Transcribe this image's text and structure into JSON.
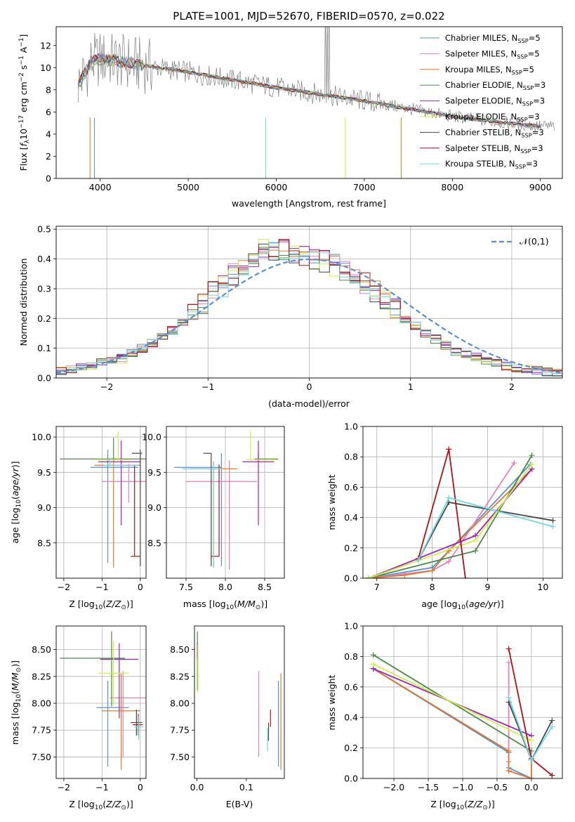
{
  "figure": {
    "title": "PLATE=1001, MJD=52670, FIBERID=0570, z=0.022"
  },
  "colors": {
    "Chabrier MILES": "#5b8ed6",
    "Salpeter MILES": "#e87fbf",
    "Kroupa MILES": "#e07a2a",
    "Chabrier ELODIE": "#4a8a4a",
    "Salpeter ELODIE": "#a020c0",
    "Kroupa ELODIE": "#ccf040",
    "Chabrier STELIB": "#444444",
    "Salpeter STELIB": "#b01010",
    "Kroupa STELIB": "#70d8e0"
  },
  "chart_data": [
    {
      "id": "spectrum",
      "type": "line",
      "title": "PLATE=1001, MJD=52670, FIBERID=0570, z=0.022",
      "xlabel": "wavelength [Angstrom, rest frame]",
      "ylabel": "Flux [f_λ 10^-17 erg cm^-2 s^-1 A^-1]",
      "xlim": [
        3500,
        9250
      ],
      "ylim": [
        0,
        13.7
      ],
      "xticks": [
        4000,
        5000,
        6000,
        7000,
        8000,
        9000
      ],
      "yticks": [
        0,
        2,
        4,
        6,
        8,
        10,
        12
      ],
      "grid": false,
      "legend_position": "top-right",
      "legend": [
        "Chabrier MILES, N_SSP=5",
        "Salpeter MILES, N_SSP=5",
        "Kroupa MILES, N_SSP=5",
        "Chabrier ELODIE, N_SSP=3",
        "Salpeter ELODIE, N_SSP=3",
        "Kroupa ELODIE, N_SSP=3",
        "Chabrier STELIB, N_SSP=3",
        "Salpeter STELIB, N_SSP=3",
        "Kroupa STELIB, N_SSP=3"
      ],
      "observed_continuum": {
        "x": [
          3750,
          3900,
          4000,
          4200,
          4500,
          5000,
          5500,
          6000,
          6500,
          7000,
          7500,
          8000,
          8500,
          9000
        ],
        "y": [
          8.5,
          10.5,
          10.8,
          10.6,
          10.2,
          9.6,
          8.9,
          8.2,
          7.6,
          7.0,
          6.3,
          5.6,
          5.1,
          4.7
        ]
      }
    },
    {
      "id": "residuals",
      "type": "line",
      "xlabel": "(data-model)/error",
      "ylabel": "Normed distribution",
      "xlim": [
        -2.5,
        2.5
      ],
      "ylim": [
        0,
        0.51
      ],
      "xticks": [
        -2,
        -1,
        0,
        1,
        2
      ],
      "yticks": [
        0.0,
        0.1,
        0.2,
        0.3,
        0.4,
        0.5
      ],
      "grid": true,
      "legend_position": "top-right",
      "legend": [
        "𝒩(0,1)"
      ],
      "bin_width": 0.1,
      "mean_histogram": [
        0.025,
        0.03,
        0.035,
        0.04,
        0.05,
        0.055,
        0.065,
        0.085,
        0.1,
        0.115,
        0.135,
        0.16,
        0.19,
        0.215,
        0.25,
        0.285,
        0.31,
        0.35,
        0.38,
        0.41,
        0.43,
        0.42,
        0.43,
        0.425,
        0.41,
        0.4,
        0.39,
        0.38,
        0.365,
        0.35,
        0.32,
        0.29,
        0.26,
        0.23,
        0.2,
        0.175,
        0.15,
        0.13,
        0.11,
        0.09,
        0.08,
        0.07,
        0.06,
        0.05,
        0.04,
        0.035,
        0.03,
        0.025,
        0.02,
        0.015
      ]
    },
    {
      "id": "age_vs_Z",
      "type": "scatter",
      "xlabel": "Z [log10(Z/Z☉)]",
      "ylabel": "age [log10(age/yr)]",
      "xlim": [
        -2.2,
        0.15
      ],
      "ylim": [
        8.0,
        10.15
      ],
      "xticks": [
        -2,
        -1,
        0
      ],
      "yticks": [
        8.5,
        9.0,
        9.5,
        10.0
      ],
      "grid": true,
      "points": [
        {
          "series": "Chabrier MILES",
          "x": -0.85,
          "xerr": [
            0.45,
            0.8
          ],
          "y": 9.57,
          "yerr": [
            1.35,
            0.25
          ]
        },
        {
          "series": "Salpeter MILES",
          "x": -0.3,
          "xerr": [
            0.7,
            0.5
          ],
          "y": 9.37,
          "yerr": [
            0.3,
            0.25
          ]
        },
        {
          "series": "Kroupa MILES",
          "x": -0.7,
          "xerr": [
            0.5,
            0.7
          ],
          "y": 9.6,
          "yerr": [
            1.45,
            0.1
          ]
        },
        {
          "series": "Chabrier ELODIE",
          "x": -0.7,
          "xerr": [
            1.4,
            1.0
          ],
          "y": 9.69,
          "yerr": [
            0.02,
            0.3
          ]
        },
        {
          "series": "Salpeter ELODIE",
          "x": -0.5,
          "xerr": [
            0.6,
            0.5
          ],
          "y": 9.65,
          "yerr": [
            0.9,
            0.3
          ]
        },
        {
          "series": "Kroupa ELODIE",
          "x": -0.58,
          "xerr": [
            0.6,
            0.35
          ],
          "y": 9.68,
          "yerr": [
            0.0,
            0.4
          ]
        },
        {
          "series": "Chabrier STELIB",
          "x": 0.0,
          "xerr": [
            0.22,
            0.05
          ],
          "y": 9.77,
          "yerr": [
            1.6,
            0.05
          ]
        },
        {
          "series": "Salpeter STELIB",
          "x": -0.15,
          "xerr": [
            0.1,
            0.15
          ],
          "y": 8.31,
          "yerr": [
            0.0,
            1.3
          ]
        },
        {
          "series": "Kroupa STELIB",
          "x": -0.8,
          "xerr": [
            0.15,
            0.75
          ],
          "y": 9.6,
          "yerr": [
            0.0,
            0.1
          ]
        }
      ]
    },
    {
      "id": "age_vs_mass",
      "type": "scatter",
      "xlabel": "mass [log10(M/M☉)]",
      "xlim": [
        7.25,
        8.75
      ],
      "ylim": [
        8.0,
        10.15
      ],
      "xticks": [
        7.5,
        8.0,
        8.5
      ],
      "yticks": [
        8.5,
        9.0,
        9.5,
        10.0
      ],
      "grid": true,
      "points": [
        {
          "series": "Chabrier MILES",
          "x": 7.95,
          "xerr": [
            0.6,
            0.0
          ],
          "y": 9.57,
          "yerr": [
            1.4,
            0.2
          ]
        },
        {
          "series": "Salpeter MILES",
          "x": 8.05,
          "xerr": [
            0.55,
            0.35
          ],
          "y": 9.37,
          "yerr": [
            1.25,
            0.3
          ]
        },
        {
          "series": "Kroupa MILES",
          "x": 7.85,
          "xerr": [
            0.3,
            0.3
          ],
          "y": 9.55,
          "yerr": [
            1.4,
            0.1
          ]
        },
        {
          "series": "Chabrier ELODIE",
          "x": 8.42,
          "xerr": [
            0.05,
            0.25
          ],
          "y": 9.69,
          "yerr": [
            0.0,
            0.1
          ]
        },
        {
          "series": "Salpeter ELODIE",
          "x": 8.42,
          "xerr": [
            0.2,
            0.2
          ],
          "y": 9.65,
          "yerr": [
            0.9,
            0.3
          ]
        },
        {
          "series": "Kroupa ELODIE",
          "x": 8.32,
          "xerr": [
            0.05,
            0.35
          ],
          "y": 9.68,
          "yerr": [
            0.0,
            0.4
          ]
        },
        {
          "series": "Chabrier STELIB",
          "x": 7.82,
          "xerr": [
            0.1,
            0.0
          ],
          "y": 9.77,
          "yerr": [
            1.6,
            0.0
          ]
        },
        {
          "series": "Salpeter STELIB",
          "x": 7.92,
          "xerr": [
            0.1,
            0.0
          ],
          "y": 8.31,
          "yerr": [
            0.0,
            1.3
          ]
        },
        {
          "series": "Kroupa STELIB",
          "x": 7.85,
          "xerr": [
            0.4,
            0.1
          ],
          "y": 9.55,
          "yerr": [
            1.4,
            0.1
          ]
        }
      ]
    },
    {
      "id": "weight_vs_age",
      "type": "line",
      "xlabel": "age [log10(age/yr)]",
      "ylabel": "mass weight",
      "xlim": [
        6.75,
        10.35
      ],
      "ylim": [
        0,
        1.0
      ],
      "xticks": [
        7,
        8,
        9,
        10
      ],
      "yticks": [
        0.0,
        0.2,
        0.4,
        0.6,
        0.8,
        1.0
      ],
      "grid": true,
      "series": [
        {
          "name": "Chabrier MILES",
          "x": [
            6.85,
            8.0,
            8.3,
            9.77
          ],
          "y": [
            0.0,
            0.07,
            0.18,
            0.75
          ]
        },
        {
          "name": "Salpeter MILES",
          "x": [
            6.85,
            8.0,
            8.3,
            9.48
          ],
          "y": [
            0.0,
            0.05,
            0.11,
            0.76
          ]
        },
        {
          "name": "Kroupa MILES",
          "x": [
            6.85,
            7.5,
            8.0,
            8.3,
            9.8
          ],
          "y": [
            0.0,
            0.02,
            0.05,
            0.18,
            0.72
          ]
        },
        {
          "name": "Chabrier ELODIE",
          "x": [
            6.85,
            8.78,
            9.8
          ],
          "y": [
            0.0,
            0.18,
            0.81
          ]
        },
        {
          "name": "Salpeter ELODIE",
          "x": [
            6.85,
            8.78,
            9.8
          ],
          "y": [
            0.0,
            0.28,
            0.72
          ]
        },
        {
          "name": "Kroupa ELODIE",
          "x": [
            6.85,
            8.78,
            9.8
          ],
          "y": [
            0.0,
            0.25,
            0.75
          ]
        },
        {
          "name": "Chabrier STELIB",
          "x": [
            7.75,
            8.3,
            10.18
          ],
          "y": [
            0.12,
            0.5,
            0.38
          ]
        },
        {
          "name": "Salpeter STELIB",
          "x": [
            7.75,
            8.3,
            8.6
          ],
          "y": [
            0.13,
            0.85,
            0.0
          ]
        },
        {
          "name": "Kroupa STELIB",
          "x": [
            7.75,
            8.3,
            10.18
          ],
          "y": [
            0.12,
            0.53,
            0.34
          ]
        }
      ]
    },
    {
      "id": "mass_vs_Z",
      "type": "scatter",
      "xlabel": "Z [log10(Z/Z☉)]",
      "ylabel": "mass [log10(M/M☉)]",
      "xlim": [
        -2.2,
        0.15
      ],
      "ylim": [
        7.3,
        8.72
      ],
      "xticks": [
        -2,
        -1,
        0
      ],
      "yticks": [
        7.5,
        7.75,
        8.0,
        8.25,
        8.5
      ],
      "grid": true,
      "points": [
        {
          "series": "Chabrier MILES",
          "x": -0.85,
          "xerr": [
            0.3,
            0.55
          ],
          "y": 7.96,
          "yerr": [
            0.55,
            0.25
          ]
        },
        {
          "series": "Salpeter MILES",
          "x": -0.45,
          "xerr": [
            0.35,
            0.75
          ],
          "y": 8.05,
          "yerr": [
            0.55,
            0.25
          ]
        },
        {
          "series": "Kroupa MILES",
          "x": -0.5,
          "xerr": [
            0.5,
            0.5
          ],
          "y": 7.93,
          "yerr": [
            0.55,
            0.35
          ]
        },
        {
          "series": "Chabrier ELODIE",
          "x": -0.75,
          "xerr": [
            1.35,
            0.35
          ],
          "y": 8.42,
          "yerr": [
            0.45,
            0.25
          ]
        },
        {
          "series": "Salpeter ELODIE",
          "x": -0.55,
          "xerr": [
            0.5,
            0.5
          ],
          "y": 8.41,
          "yerr": [
            0.55,
            0.15
          ]
        },
        {
          "series": "Kroupa ELODIE",
          "x": -0.7,
          "xerr": [
            0.4,
            0.4
          ],
          "y": 8.28,
          "yerr": [
            0.3,
            0.3
          ]
        },
        {
          "series": "Chabrier STELIB",
          "x": -0.1,
          "xerr": [
            0.15,
            0.15
          ],
          "y": 7.82,
          "yerr": [
            0.12,
            0.12
          ]
        },
        {
          "series": "Salpeter STELIB",
          "x": -0.05,
          "xerr": [
            0.15,
            0.12
          ],
          "y": 7.8,
          "yerr": [
            0.1,
            0.1
          ]
        },
        {
          "series": "Kroupa STELIB",
          "x": -0.04,
          "xerr": [
            0.12,
            0.12
          ],
          "y": 7.78,
          "yerr": [
            0.12,
            0.1
          ]
        }
      ]
    },
    {
      "id": "mass_vs_EBV",
      "type": "scatter",
      "xlabel": "E(B-V)",
      "xlim": [
        -0.005,
        0.177
      ],
      "ylim": [
        7.3,
        8.72
      ],
      "xticks": [
        0.0,
        0.1
      ],
      "yticks": [
        7.5,
        7.75,
        8.0,
        8.25,
        8.5
      ],
      "grid": false,
      "points": [
        {
          "series": "Chabrier MILES",
          "x": 0.165,
          "xerr": [
            0.0,
            0.0
          ],
          "y": 7.96,
          "yerr": [
            0.55,
            0.25
          ]
        },
        {
          "series": "Salpeter MILES",
          "x": 0.125,
          "xerr": [
            0.0,
            0.0
          ],
          "y": 8.05,
          "yerr": [
            0.55,
            0.25
          ]
        },
        {
          "series": "Kroupa MILES",
          "x": 0.17,
          "xerr": [
            0.0,
            0.0
          ],
          "y": 7.93,
          "yerr": [
            0.55,
            0.35
          ]
        },
        {
          "series": "Chabrier ELODIE",
          "x": 0.001,
          "xerr": [
            0.0,
            0.0
          ],
          "y": 8.42,
          "yerr": [
            0.3,
            0.25
          ]
        },
        {
          "series": "Salpeter ELODIE",
          "x": 0.001,
          "xerr": [
            0.0,
            0.0
          ],
          "y": 8.41,
          "yerr": [
            0.0,
            0.15
          ]
        },
        {
          "series": "Kroupa ELODIE",
          "x": 0.002,
          "xerr": [
            0.0,
            0.0
          ],
          "y": 8.35,
          "yerr": [
            0.25,
            0.2
          ]
        },
        {
          "series": "Chabrier STELIB",
          "x": 0.145,
          "xerr": [
            0.0,
            0.0
          ],
          "y": 7.7,
          "yerr": [
            0.05,
            0.12
          ]
        },
        {
          "series": "Salpeter STELIB",
          "x": 0.149,
          "xerr": [
            0.0,
            0.0
          ],
          "y": 7.86,
          "yerr": [
            0.08,
            0.08
          ]
        },
        {
          "series": "Kroupa STELIB",
          "x": 0.143,
          "xerr": [
            0.0,
            0.0
          ],
          "y": 7.67,
          "yerr": [
            0.12,
            0.1
          ]
        }
      ]
    },
    {
      "id": "weight_vs_Z",
      "type": "line",
      "xlabel": "Z [log10(Z/Z☉)]",
      "ylabel": "mass weight",
      "xlim": [
        -2.45,
        0.45
      ],
      "ylim": [
        0,
        1.0
      ],
      "xticks": [
        -2.0,
        -1.5,
        -1.0,
        -0.5,
        0.0
      ],
      "yticks": [
        0.0,
        0.2,
        0.4,
        0.6,
        0.8,
        1.0
      ],
      "grid": true,
      "series": [
        {
          "name": "Chabrier MILES",
          "x": [
            -2.3,
            -0.33,
            -0.33,
            0.0,
            0.0
          ],
          "y": [
            0.72,
            0.17,
            0.07,
            0.0,
            0.12
          ]
        },
        {
          "name": "Salpeter MILES",
          "x": [
            -0.33,
            -0.33,
            -0.33,
            0.0,
            0.0
          ],
          "y": [
            0.76,
            0.11,
            0.05,
            0.0,
            0.12
          ]
        },
        {
          "name": "Kroupa MILES",
          "x": [
            -2.3,
            -0.33,
            -0.33,
            0.0,
            0.0
          ],
          "y": [
            0.72,
            0.18,
            0.05,
            0.0,
            0.13
          ]
        },
        {
          "name": "Chabrier ELODIE",
          "x": [
            -2.3,
            0.0
          ],
          "y": [
            0.81,
            0.18
          ]
        },
        {
          "name": "Salpeter ELODIE",
          "x": [
            -2.3,
            0.0
          ],
          "y": [
            0.72,
            0.28
          ]
        },
        {
          "name": "Kroupa ELODIE",
          "x": [
            -2.3,
            0.0
          ],
          "y": [
            0.75,
            0.25
          ]
        },
        {
          "name": "Chabrier STELIB",
          "x": [
            -0.33,
            0.0,
            0.3
          ],
          "y": [
            0.5,
            0.12,
            0.38
          ]
        },
        {
          "name": "Salpeter STELIB",
          "x": [
            -0.33,
            0.0,
            0.3
          ],
          "y": [
            0.85,
            0.13,
            0.02
          ]
        },
        {
          "name": "Kroupa STELIB",
          "x": [
            -0.33,
            0.0,
            0.3
          ],
          "y": [
            0.53,
            0.12,
            0.34
          ]
        }
      ]
    }
  ]
}
